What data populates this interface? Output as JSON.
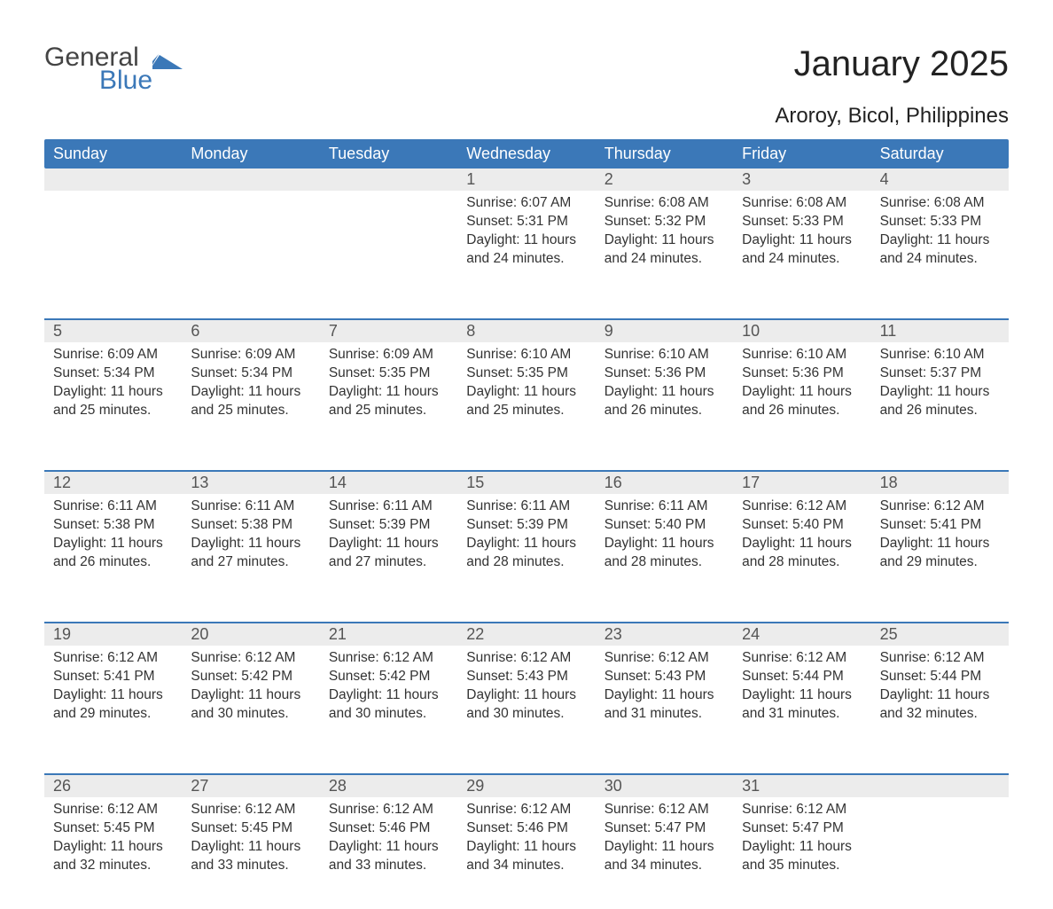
{
  "logo": {
    "word1": "General",
    "word2": "Blue",
    "shape_color": "#3b78b8"
  },
  "title": "January 2025",
  "location": "Aroroy, Bicol, Philippines",
  "colors": {
    "header_bg": "#3b78b8",
    "header_text": "#ffffff",
    "daynum_bg": "#ececec",
    "text": "#333333",
    "rule": "#3b78b8"
  },
  "fonts": {
    "title_size": 40,
    "location_size": 24,
    "dow_size": 18,
    "daynum_size": 18,
    "detail_size": 15.5
  },
  "days_of_week": [
    "Sunday",
    "Monday",
    "Tuesday",
    "Wednesday",
    "Thursday",
    "Friday",
    "Saturday"
  ],
  "weeks": [
    {
      "top_border": false,
      "days": [
        {
          "n": "",
          "sunrise": "",
          "sunset": "",
          "daylight": ""
        },
        {
          "n": "",
          "sunrise": "",
          "sunset": "",
          "daylight": ""
        },
        {
          "n": "",
          "sunrise": "",
          "sunset": "",
          "daylight": ""
        },
        {
          "n": "1",
          "sunrise": "Sunrise: 6:07 AM",
          "sunset": "Sunset: 5:31 PM",
          "daylight": "Daylight: 11 hours and 24 minutes."
        },
        {
          "n": "2",
          "sunrise": "Sunrise: 6:08 AM",
          "sunset": "Sunset: 5:32 PM",
          "daylight": "Daylight: 11 hours and 24 minutes."
        },
        {
          "n": "3",
          "sunrise": "Sunrise: 6:08 AM",
          "sunset": "Sunset: 5:33 PM",
          "daylight": "Daylight: 11 hours and 24 minutes."
        },
        {
          "n": "4",
          "sunrise": "Sunrise: 6:08 AM",
          "sunset": "Sunset: 5:33 PM",
          "daylight": "Daylight: 11 hours and 24 minutes."
        }
      ]
    },
    {
      "top_border": true,
      "days": [
        {
          "n": "5",
          "sunrise": "Sunrise: 6:09 AM",
          "sunset": "Sunset: 5:34 PM",
          "daylight": "Daylight: 11 hours and 25 minutes."
        },
        {
          "n": "6",
          "sunrise": "Sunrise: 6:09 AM",
          "sunset": "Sunset: 5:34 PM",
          "daylight": "Daylight: 11 hours and 25 minutes."
        },
        {
          "n": "7",
          "sunrise": "Sunrise: 6:09 AM",
          "sunset": "Sunset: 5:35 PM",
          "daylight": "Daylight: 11 hours and 25 minutes."
        },
        {
          "n": "8",
          "sunrise": "Sunrise: 6:10 AM",
          "sunset": "Sunset: 5:35 PM",
          "daylight": "Daylight: 11 hours and 25 minutes."
        },
        {
          "n": "9",
          "sunrise": "Sunrise: 6:10 AM",
          "sunset": "Sunset: 5:36 PM",
          "daylight": "Daylight: 11 hours and 26 minutes."
        },
        {
          "n": "10",
          "sunrise": "Sunrise: 6:10 AM",
          "sunset": "Sunset: 5:36 PM",
          "daylight": "Daylight: 11 hours and 26 minutes."
        },
        {
          "n": "11",
          "sunrise": "Sunrise: 6:10 AM",
          "sunset": "Sunset: 5:37 PM",
          "daylight": "Daylight: 11 hours and 26 minutes."
        }
      ]
    },
    {
      "top_border": true,
      "days": [
        {
          "n": "12",
          "sunrise": "Sunrise: 6:11 AM",
          "sunset": "Sunset: 5:38 PM",
          "daylight": "Daylight: 11 hours and 26 minutes."
        },
        {
          "n": "13",
          "sunrise": "Sunrise: 6:11 AM",
          "sunset": "Sunset: 5:38 PM",
          "daylight": "Daylight: 11 hours and 27 minutes."
        },
        {
          "n": "14",
          "sunrise": "Sunrise: 6:11 AM",
          "sunset": "Sunset: 5:39 PM",
          "daylight": "Daylight: 11 hours and 27 minutes."
        },
        {
          "n": "15",
          "sunrise": "Sunrise: 6:11 AM",
          "sunset": "Sunset: 5:39 PM",
          "daylight": "Daylight: 11 hours and 28 minutes."
        },
        {
          "n": "16",
          "sunrise": "Sunrise: 6:11 AM",
          "sunset": "Sunset: 5:40 PM",
          "daylight": "Daylight: 11 hours and 28 minutes."
        },
        {
          "n": "17",
          "sunrise": "Sunrise: 6:12 AM",
          "sunset": "Sunset: 5:40 PM",
          "daylight": "Daylight: 11 hours and 28 minutes."
        },
        {
          "n": "18",
          "sunrise": "Sunrise: 6:12 AM",
          "sunset": "Sunset: 5:41 PM",
          "daylight": "Daylight: 11 hours and 29 minutes."
        }
      ]
    },
    {
      "top_border": true,
      "days": [
        {
          "n": "19",
          "sunrise": "Sunrise: 6:12 AM",
          "sunset": "Sunset: 5:41 PM",
          "daylight": "Daylight: 11 hours and 29 minutes."
        },
        {
          "n": "20",
          "sunrise": "Sunrise: 6:12 AM",
          "sunset": "Sunset: 5:42 PM",
          "daylight": "Daylight: 11 hours and 30 minutes."
        },
        {
          "n": "21",
          "sunrise": "Sunrise: 6:12 AM",
          "sunset": "Sunset: 5:42 PM",
          "daylight": "Daylight: 11 hours and 30 minutes."
        },
        {
          "n": "22",
          "sunrise": "Sunrise: 6:12 AM",
          "sunset": "Sunset: 5:43 PM",
          "daylight": "Daylight: 11 hours and 30 minutes."
        },
        {
          "n": "23",
          "sunrise": "Sunrise: 6:12 AM",
          "sunset": "Sunset: 5:43 PM",
          "daylight": "Daylight: 11 hours and 31 minutes."
        },
        {
          "n": "24",
          "sunrise": "Sunrise: 6:12 AM",
          "sunset": "Sunset: 5:44 PM",
          "daylight": "Daylight: 11 hours and 31 minutes."
        },
        {
          "n": "25",
          "sunrise": "Sunrise: 6:12 AM",
          "sunset": "Sunset: 5:44 PM",
          "daylight": "Daylight: 11 hours and 32 minutes."
        }
      ]
    },
    {
      "top_border": true,
      "days": [
        {
          "n": "26",
          "sunrise": "Sunrise: 6:12 AM",
          "sunset": "Sunset: 5:45 PM",
          "daylight": "Daylight: 11 hours and 32 minutes."
        },
        {
          "n": "27",
          "sunrise": "Sunrise: 6:12 AM",
          "sunset": "Sunset: 5:45 PM",
          "daylight": "Daylight: 11 hours and 33 minutes."
        },
        {
          "n": "28",
          "sunrise": "Sunrise: 6:12 AM",
          "sunset": "Sunset: 5:46 PM",
          "daylight": "Daylight: 11 hours and 33 minutes."
        },
        {
          "n": "29",
          "sunrise": "Sunrise: 6:12 AM",
          "sunset": "Sunset: 5:46 PM",
          "daylight": "Daylight: 11 hours and 34 minutes."
        },
        {
          "n": "30",
          "sunrise": "Sunrise: 6:12 AM",
          "sunset": "Sunset: 5:47 PM",
          "daylight": "Daylight: 11 hours and 34 minutes."
        },
        {
          "n": "31",
          "sunrise": "Sunrise: 6:12 AM",
          "sunset": "Sunset: 5:47 PM",
          "daylight": "Daylight: 11 hours and 35 minutes."
        },
        {
          "n": "",
          "sunrise": "",
          "sunset": "",
          "daylight": ""
        }
      ]
    }
  ]
}
